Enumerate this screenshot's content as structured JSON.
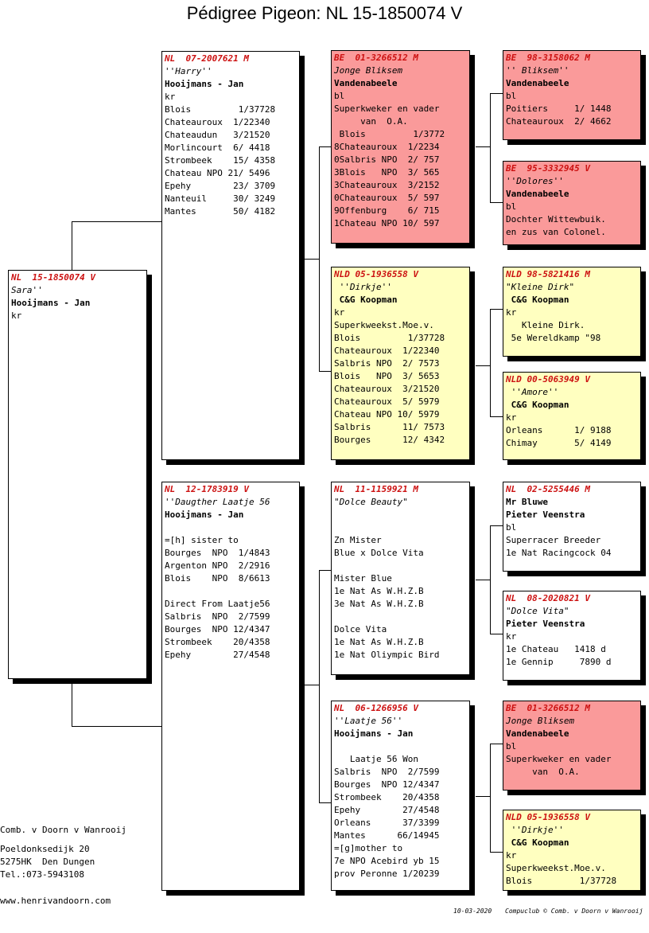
{
  "title": "Pédigree Pigeon: NL  15-1850074 V",
  "pigeons": [
    {
      "id": "p0",
      "ring": "NL  15-1850074 V",
      "lines": [
        {
          "t": "Sara''",
          "s": "ital"
        },
        {
          "t": "Hooijmans - Jan",
          "s": "bold"
        },
        {
          "t": "kr",
          "s": ""
        }
      ]
    },
    {
      "id": "p1",
      "ring": "NL  07-2007621 M",
      "lines": [
        {
          "t": "''Harry''",
          "s": "ital"
        },
        {
          "t": "Hooijmans - Jan",
          "s": "bold"
        },
        {
          "t": "kr",
          "s": ""
        },
        {
          "t": "Blois         1/37728",
          "s": ""
        },
        {
          "t": "Chateauroux  1/22340",
          "s": ""
        },
        {
          "t": "Chateaudun   3/21520",
          "s": ""
        },
        {
          "t": "Morlincourt  6/ 4418",
          "s": ""
        },
        {
          "t": "Strombeek    15/ 4358",
          "s": ""
        },
        {
          "t": "Chateau NPO 21/ 5496",
          "s": ""
        },
        {
          "t": "Epehy        23/ 3709",
          "s": ""
        },
        {
          "t": "Nanteuil     30/ 3249",
          "s": ""
        },
        {
          "t": "Mantes       50/ 4182",
          "s": ""
        }
      ]
    },
    {
      "id": "p2",
      "ring": "NL  12-1783919 V",
      "lines": [
        {
          "t": "''Daugther Laatje 56",
          "s": "ital"
        },
        {
          "t": "Hooijmans - Jan",
          "s": "bold"
        },
        {
          "t": "",
          "s": ""
        },
        {
          "t": "=[h] sister to",
          "s": ""
        },
        {
          "t": "Bourges  NPO  1/4843",
          "s": ""
        },
        {
          "t": "Argenton NPO  2/2916",
          "s": ""
        },
        {
          "t": "Blois    NPO  8/6613",
          "s": ""
        },
        {
          "t": "",
          "s": ""
        },
        {
          "t": "Direct From Laatje56",
          "s": ""
        },
        {
          "t": "Salbris  NPO  2/7599",
          "s": ""
        },
        {
          "t": "Bourges  NPO 12/4347",
          "s": ""
        },
        {
          "t": "Strombeek    20/4358",
          "s": ""
        },
        {
          "t": "Epehy        27/4548",
          "s": ""
        }
      ]
    },
    {
      "id": "p3",
      "ring": "BE  01-3266512 M",
      "lines": [
        {
          "t": "Jonge Bliksem",
          "s": "ital"
        },
        {
          "t": "Vandenabeele",
          "s": "bold"
        },
        {
          "t": "bl",
          "s": ""
        },
        {
          "t": "Superkweker en vader",
          "s": ""
        },
        {
          "t": "     van  O.A.",
          "s": ""
        },
        {
          "t": " Blois         1/3772",
          "s": ""
        },
        {
          "t": "8Chateauroux  1/2234",
          "s": ""
        },
        {
          "t": "0Salbris NPO  2/ 757",
          "s": ""
        },
        {
          "t": "3Blois   NPO  3/ 565",
          "s": ""
        },
        {
          "t": "3Chateauroux  3/2152",
          "s": ""
        },
        {
          "t": "0Chateauroux  5/ 597",
          "s": ""
        },
        {
          "t": "9Offenburg    6/ 715",
          "s": ""
        },
        {
          "t": "1Chateau NPO 10/ 597",
          "s": ""
        }
      ]
    },
    {
      "id": "p4",
      "ring": "NLD 05-1936558 V",
      "lines": [
        {
          "t": " ''Dirkje''",
          "s": "ital"
        },
        {
          "t": " C&G Koopman",
          "s": "bold"
        },
        {
          "t": "kr",
          "s": ""
        },
        {
          "t": "Superkweekst.Moe.v.",
          "s": ""
        },
        {
          "t": "Blois         1/37728",
          "s": ""
        },
        {
          "t": "Chateauroux  1/22340",
          "s": ""
        },
        {
          "t": "Salbris NPO  2/ 7573",
          "s": ""
        },
        {
          "t": "Blois   NPO  3/ 5653",
          "s": ""
        },
        {
          "t": "Chateauroux  3/21520",
          "s": ""
        },
        {
          "t": "Chateauroux  5/ 5979",
          "s": ""
        },
        {
          "t": "Chateau NPO 10/ 5979",
          "s": ""
        },
        {
          "t": "Salbris      11/ 7573",
          "s": ""
        },
        {
          "t": "Bourges      12/ 4342",
          "s": ""
        }
      ]
    },
    {
      "id": "p5",
      "ring": "NL  11-1159921 M",
      "lines": [
        {
          "t": "\"Dolce Beauty\"",
          "s": "ital"
        },
        {
          "t": "",
          "s": ""
        },
        {
          "t": "",
          "s": ""
        },
        {
          "t": "Zn Mister",
          "s": ""
        },
        {
          "t": "Blue x Dolce Vita",
          "s": ""
        },
        {
          "t": "",
          "s": ""
        },
        {
          "t": "Mister Blue",
          "s": ""
        },
        {
          "t": "1e Nat As W.H.Z.B",
          "s": ""
        },
        {
          "t": "3e Nat As W.H.Z.B",
          "s": ""
        },
        {
          "t": "",
          "s": ""
        },
        {
          "t": "Dolce Vita",
          "s": ""
        },
        {
          "t": "1e Nat As W.H.Z.B",
          "s": ""
        },
        {
          "t": "1e Nat Oliympic Bird",
          "s": ""
        }
      ]
    },
    {
      "id": "p6",
      "ring": "NL  06-1266956 V",
      "lines": [
        {
          "t": "''Laatje 56''",
          "s": "ital"
        },
        {
          "t": "Hooijmans - Jan",
          "s": "bold"
        },
        {
          "t": "",
          "s": ""
        },
        {
          "t": "   Laatje 56 Won",
          "s": ""
        },
        {
          "t": "Salbris  NPO  2/7599",
          "s": ""
        },
        {
          "t": "Bourges  NPO 12/4347",
          "s": ""
        },
        {
          "t": "Strombeek    20/4358",
          "s": ""
        },
        {
          "t": "Epehy        27/4548",
          "s": ""
        },
        {
          "t": "Orleans      37/3399",
          "s": ""
        },
        {
          "t": "Mantes      66/14945",
          "s": ""
        },
        {
          "t": "=[g]mother to",
          "s": ""
        },
        {
          "t": "7e NPO Acebird yb 15",
          "s": ""
        },
        {
          "t": "prov Peronne 1/20239",
          "s": ""
        }
      ]
    },
    {
      "id": "p7",
      "ring": "BE  98-3158062 M",
      "lines": [
        {
          "t": "'' Bliksem''",
          "s": "ital"
        },
        {
          "t": "Vandenabeele",
          "s": "bold"
        },
        {
          "t": "bl",
          "s": ""
        },
        {
          "t": "Poitiers     1/ 1448",
          "s": ""
        },
        {
          "t": "Chateauroux  2/ 4662",
          "s": ""
        }
      ]
    },
    {
      "id": "p8",
      "ring": "BE  95-3332945 V",
      "lines": [
        {
          "t": "''Dolores''",
          "s": "ital"
        },
        {
          "t": "Vandenabeele",
          "s": "bold"
        },
        {
          "t": "bl",
          "s": ""
        },
        {
          "t": "Dochter Wittewbuik.",
          "s": ""
        },
        {
          "t": "en zus van Colonel.",
          "s": ""
        }
      ]
    },
    {
      "id": "p9",
      "ring": "NLD 98-5821416 M",
      "lines": [
        {
          "t": "\"Kleine Dirk\"",
          "s": "ital"
        },
        {
          "t": " C&G Koopman",
          "s": "bold"
        },
        {
          "t": "kr",
          "s": ""
        },
        {
          "t": "   Kleine Dirk.",
          "s": ""
        },
        {
          "t": " 5e Wereldkamp \"98",
          "s": ""
        }
      ]
    },
    {
      "id": "p10",
      "ring": "NLD 00-5063949 V",
      "lines": [
        {
          "t": " ''Amore''",
          "s": "ital"
        },
        {
          "t": " C&G Koopman",
          "s": "bold"
        },
        {
          "t": "kr",
          "s": ""
        },
        {
          "t": "Orleans      1/ 9188",
          "s": ""
        },
        {
          "t": "Chimay       5/ 4149",
          "s": ""
        }
      ]
    },
    {
      "id": "p11",
      "ring": "NL  02-5255446 M",
      "lines": [
        {
          "t": "Mr Bluwe",
          "s": "bold"
        },
        {
          "t": "Pieter Veenstra",
          "s": "bold"
        },
        {
          "t": "bl",
          "s": ""
        },
        {
          "t": "Superracer Breeder",
          "s": ""
        },
        {
          "t": "1e Nat Racingcock 04",
          "s": ""
        }
      ]
    },
    {
      "id": "p12",
      "ring": "NL  08-2020821 V",
      "lines": [
        {
          "t": "\"Dolce Vita\"",
          "s": "ital"
        },
        {
          "t": "Pieter Veenstra",
          "s": "bold"
        },
        {
          "t": "kr",
          "s": ""
        },
        {
          "t": "1e Chateau   1418 d",
          "s": ""
        },
        {
          "t": "1e Gennip     7890 d",
          "s": ""
        }
      ]
    },
    {
      "id": "p13",
      "ring": "BE  01-3266512 M",
      "lines": [
        {
          "t": "Jonge Bliksem",
          "s": "ital"
        },
        {
          "t": "Vandenabeele",
          "s": "bold"
        },
        {
          "t": "bl",
          "s": ""
        },
        {
          "t": "Superkweker en vader",
          "s": ""
        },
        {
          "t": "     van  O.A.",
          "s": ""
        }
      ]
    },
    {
      "id": "p14",
      "ring": "NLD 05-1936558 V",
      "lines": [
        {
          "t": " ''Dirkje''",
          "s": "ital"
        },
        {
          "t": " C&G Koopman",
          "s": "bold"
        },
        {
          "t": "kr",
          "s": ""
        },
        {
          "t": "Superkweekst.Moe.v.",
          "s": ""
        },
        {
          "t": "Blois         1/37728",
          "s": ""
        }
      ]
    }
  ],
  "footer": {
    "breeder": "Comb. v Doorn v Wanrooij",
    "address1": "Poeldonksedijk 20",
    "address2": "5275HK  Den Dungen",
    "phone": "Tel.:073-5943108",
    "website": "www.henrivandoorn.com",
    "date": "10-03-2020",
    "credit": "Compuclub © Comb. v Doorn v Wanrooij"
  },
  "colors": {
    "ring": "#cc1111",
    "red_box": "#fa9a9a",
    "yellow_box": "#ffffc0"
  }
}
